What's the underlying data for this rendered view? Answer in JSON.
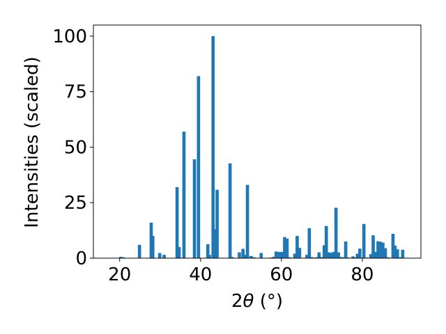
{
  "chart_data": {
    "type": "bar",
    "xlabel_prefix": "2",
    "xlabel_symbol": "θ",
    "xlabel_suffix": " (°)",
    "ylabel": "Intensities (scaled)",
    "xlim": [
      13.5,
      94.5
    ],
    "ylim": [
      0,
      105
    ],
    "xticks": [
      20,
      40,
      60,
      80
    ],
    "yticks": [
      0,
      25,
      50,
      75,
      100
    ],
    "bar_color": "#1f77b4",
    "bar_width": 0.8,
    "x": [
      20.3,
      20.9,
      24.9,
      27.8,
      28.2,
      29.9,
      31.0,
      34.2,
      34.7,
      35.9,
      38.5,
      39.5,
      41.8,
      42.2,
      43.1,
      43.6,
      44.1,
      47.3,
      47.8,
      49.6,
      50.5,
      51.0,
      51.6,
      52.5,
      53.2,
      55.0,
      57.5,
      58.1,
      58.7,
      59.5,
      60.2,
      60.8,
      61.4,
      62.0,
      63.3,
      63.9,
      64.5,
      66.3,
      66.9,
      67.5,
      68.6,
      69.3,
      70.0,
      70.6,
      71.1,
      71.7,
      72.3,
      72.9,
      73.5,
      74.1,
      74.7,
      75.2,
      75.9,
      76.5,
      77.7,
      78.3,
      78.8,
      79.4,
      80.4,
      81.0,
      82.1,
      82.7,
      83.3,
      83.9,
      84.5,
      85.1,
      85.7,
      86.3,
      87.6,
      88.1,
      88.7,
      89.2,
      90.0
    ],
    "values": [
      0.6,
      0.4,
      6.0,
      16.0,
      10.0,
      2.3,
      1.5,
      32.0,
      5.0,
      57.0,
      44.5,
      82.0,
      6.3,
      1.5,
      100.0,
      13.0,
      30.8,
      42.7,
      0.5,
      2.6,
      4.2,
      1.5,
      33.0,
      1.0,
      0.4,
      2.3,
      0.3,
      0.6,
      3.0,
      2.8,
      2.8,
      9.5,
      8.8,
      0.4,
      2.0,
      10.0,
      4.6,
      1.5,
      13.5,
      0.5,
      0.4,
      2.6,
      0.5,
      5.8,
      14.5,
      2.6,
      2.4,
      2.8,
      22.7,
      2.6,
      0.5,
      0.4,
      7.5,
      0.3,
      0.8,
      0.3,
      2.0,
      4.3,
      15.4,
      0.3,
      1.8,
      10.3,
      2.8,
      7.6,
      7.4,
      7.0,
      4.5,
      0.4,
      11.0,
      5.6,
      4.0,
      0.4,
      3.8
    ]
  }
}
